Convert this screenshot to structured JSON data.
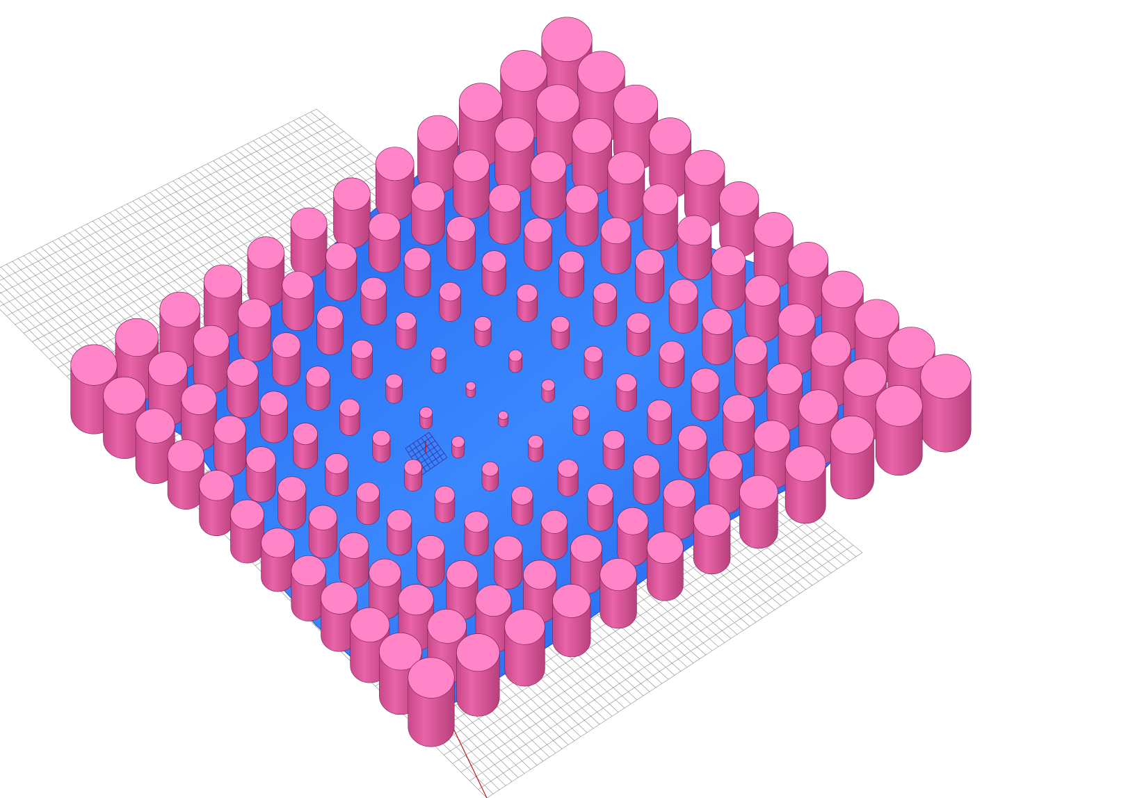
{
  "viewport": {
    "kind": "3d-modeling-viewport",
    "background": "#ffffff"
  },
  "scene": {
    "ground_grid": {
      "color": "#8a8a8a",
      "divisions_u": 60,
      "divisions_v": 60
    },
    "surface": {
      "color": "#2b6bf2",
      "highlight": "#3d8cff",
      "shade": "#1a52dc"
    },
    "pins": {
      "color_top": "#ff85c8",
      "color_side": "#e65fa3",
      "color_dark": "#b8407c",
      "outline": "#7a2050",
      "grid_rows": 12,
      "grid_cols": 12
    },
    "gumball": {
      "color": "#3a3aa8",
      "axis_color": "#d01010"
    },
    "world_axis": {
      "color": "#c01818"
    }
  }
}
